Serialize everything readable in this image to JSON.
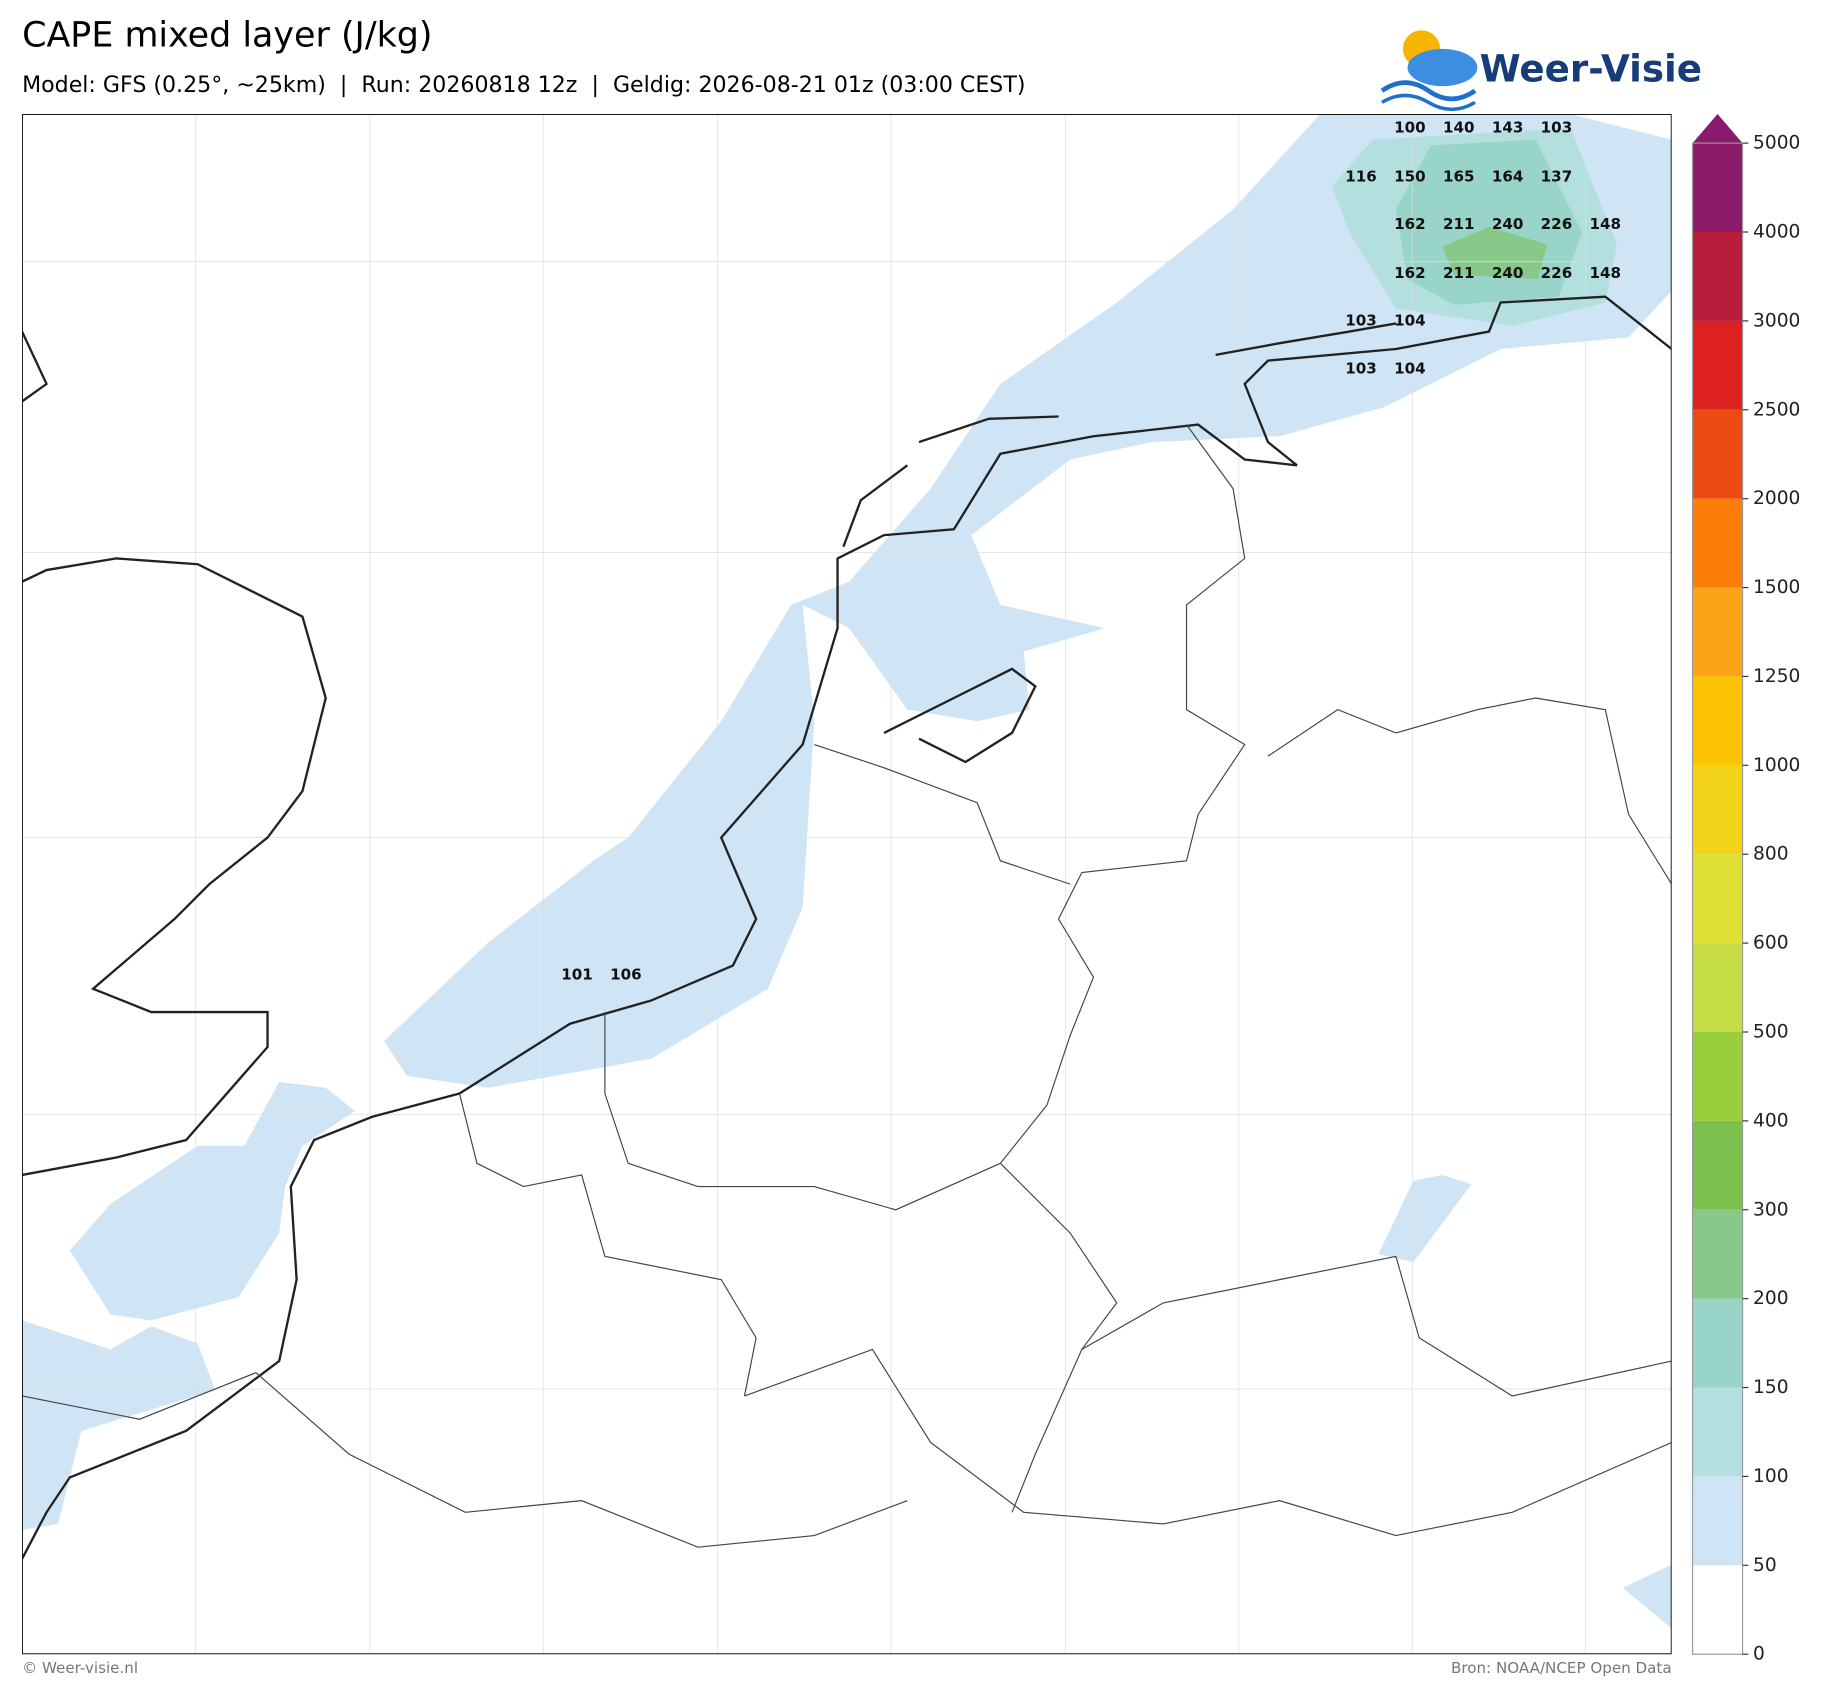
{
  "header": {
    "title": "CAPE mixed layer (J/kg)",
    "subtitle": "Model: GFS (0.25°, ~25km)  |  Run: 20260818 12z  |  Geldig: 2026-08-21 01z (03:00 CEST)",
    "logo": "Weer-Visie"
  },
  "map": {
    "value_labels": [
      [
        100,
        140,
        143,
        103
      ],
      [
        116,
        150,
        165,
        164,
        137
      ],
      [
        162,
        211,
        240,
        226,
        148
      ],
      [
        162,
        211,
        240,
        226,
        148
      ],
      [
        103,
        104
      ],
      [
        103,
        104
      ],
      [
        101,
        106
      ]
    ]
  },
  "colorbar": {
    "ticks": [
      0,
      50,
      100,
      150,
      200,
      300,
      400,
      500,
      600,
      800,
      1000,
      1250,
      1500,
      2000,
      2500,
      3000,
      4000,
      5000
    ],
    "colors": [
      "#ffffff",
      "#cfe5f5",
      "#b3dfdf",
      "#98d4c8",
      "#88c98a",
      "#7cc14e",
      "#9acd3c",
      "#c5dc44",
      "#dfe035",
      "#f2d31a",
      "#fcc204",
      "#fda31a",
      "#fb7e0b",
      "#ea4c12",
      "#dd2020",
      "#b71d3a",
      "#8c1a6a"
    ],
    "extend_color": "#8a1a6c"
  },
  "footer": {
    "left": "© Weer-visie.nl",
    "right": "Bron: NOAA/NCEP Open Data"
  }
}
